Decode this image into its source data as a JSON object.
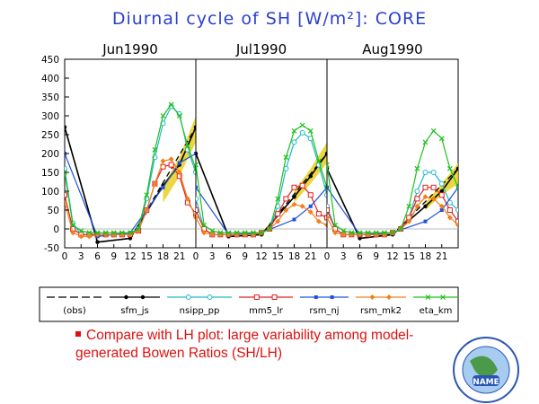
{
  "chart_data": {
    "type": "line",
    "title": "Diurnal cycle of SH [W/m²]: CORE",
    "panels": [
      "Jun1990",
      "Jul1990",
      "Aug1990"
    ],
    "x_ticks": [
      "0",
      "3",
      "6",
      "9",
      "12",
      "15",
      "18",
      "21"
    ],
    "y_ticks": [
      "450",
      "400",
      "350",
      "300",
      "250",
      "200",
      "150",
      "100",
      "50",
      "0",
      "-50"
    ],
    "ylim": [
      -50,
      450
    ],
    "xlim": [
      0,
      24
    ],
    "x": [
      0,
      1.5,
      3,
      4.5,
      6,
      7.5,
      9,
      10.5,
      12,
      13.5,
      15,
      16.5,
      18,
      19.5,
      21,
      22.5,
      24
    ],
    "grid": false,
    "legend": "bottom",
    "series": [
      {
        "name": "(obs)",
        "color": "#000000",
        "style": "dashed",
        "panels": [
          {
            "x": [
              0,
              6,
              12,
              24
            ],
            "y": [
              270,
              -35,
              -25,
              270
            ],
            "band": {
              "x": [
                18,
                21,
                24
              ],
              "lo": [
                70,
                140,
                230
              ],
              "hi": [
                115,
                190,
                300
              ]
            }
          },
          {
            "x": [
              0,
              6,
              12,
              24
            ],
            "y": [
              200,
              -20,
              -15,
              200
            ],
            "band": {
              "x": [
                18,
                21,
                24
              ],
              "lo": [
                70,
                120,
                175
              ],
              "hi": [
                100,
                160,
                230
              ]
            }
          },
          {
            "x": [
              0,
              6,
              12,
              24
            ],
            "y": [
              160,
              -25,
              -15,
              160
            ],
            "band": {
              "x": [
                18,
                21,
                24
              ],
              "lo": [
                50,
                90,
                120
              ],
              "hi": [
                70,
                120,
                175
              ]
            }
          }
        ]
      },
      {
        "name": "sfm_js",
        "color": "#000000",
        "style": "solid-dot",
        "panels": [
          {
            "x": [
              0,
              6,
              12,
              18,
              21,
              24
            ],
            "y": [
              270,
              -35,
              -25,
              115,
              170,
              270
            ]
          },
          {
            "x": [
              0,
              6,
              12,
              18,
              21,
              24
            ],
            "y": [
              200,
              -20,
              -15,
              85,
              140,
              200
            ]
          },
          {
            "x": [
              0,
              6,
              12,
              18,
              21,
              24
            ],
            "y": [
              160,
              -25,
              -15,
              60,
              100,
              160
            ]
          }
        ]
      },
      {
        "name": "nsipp_pp",
        "color": "#20b8c8",
        "style": "open-circle",
        "panels": [
          {
            "y": [
              160,
              15,
              -15,
              -15,
              -15,
              -15,
              -15,
              -15,
              -15,
              0,
              80,
              190,
              280,
              325,
              305,
              210,
              150
            ]
          },
          {
            "y": [
              80,
              0,
              -15,
              -15,
              -15,
              -15,
              -15,
              -15,
              -10,
              0,
              60,
              160,
              230,
              255,
              240,
              170,
              90
            ]
          },
          {
            "y": [
              60,
              0,
              -15,
              -15,
              -15,
              -15,
              -15,
              -15,
              -10,
              0,
              30,
              100,
              150,
              150,
              120,
              70,
              50
            ]
          }
        ]
      },
      {
        "name": "mm5_lr",
        "color": "#e02020",
        "style": "open-square",
        "panels": [
          {
            "y": [
              90,
              0,
              -15,
              -15,
              -15,
              -15,
              -15,
              -15,
              -15,
              -5,
              50,
              120,
              165,
              170,
              140,
              70,
              40
            ]
          },
          {
            "y": [
              50,
              0,
              -15,
              -15,
              -15,
              -15,
              -15,
              -15,
              -10,
              0,
              40,
              80,
              110,
              115,
              90,
              40,
              30
            ]
          },
          {
            "y": [
              50,
              0,
              -15,
              -15,
              -15,
              -15,
              -15,
              -15,
              -10,
              0,
              30,
              80,
              110,
              110,
              90,
              50,
              20
            ]
          }
        ]
      },
      {
        "name": "rsm_nj",
        "color": "#2050e0",
        "style": "filled-square",
        "panels": [
          {
            "x": [
              0,
              6,
              12,
              18,
              21,
              24
            ],
            "y": [
              200,
              -20,
              -10,
              110,
              175,
              200
            ]
          },
          {
            "x": [
              0,
              6,
              12,
              18,
              21,
              24
            ],
            "y": [
              110,
              -15,
              -10,
              25,
              60,
              110
            ]
          },
          {
            "x": [
              0,
              6,
              12,
              18,
              21,
              24
            ],
            "y": [
              110,
              -15,
              -10,
              20,
              50,
              110
            ]
          }
        ]
      },
      {
        "name": "rsm_mk2",
        "color": "#f08020",
        "style": "diamond",
        "panels": [
          {
            "y": [
              70,
              -10,
              -20,
              -20,
              -15,
              -15,
              -15,
              -15,
              -15,
              -5,
              50,
              120,
              180,
              185,
              150,
              80,
              30
            ]
          },
          {
            "y": [
              30,
              -10,
              -15,
              -15,
              -15,
              -15,
              -15,
              -15,
              -10,
              0,
              20,
              50,
              65,
              60,
              45,
              20,
              10
            ]
          },
          {
            "y": [
              30,
              -10,
              -15,
              -15,
              -15,
              -15,
              -15,
              -15,
              -10,
              0,
              20,
              60,
              85,
              80,
              60,
              30,
              10
            ]
          }
        ]
      },
      {
        "name": "eta_km",
        "color": "#20c020",
        "style": "cross",
        "panels": [
          {
            "y": [
              150,
              10,
              -5,
              -10,
              -10,
              -10,
              -10,
              -10,
              -10,
              0,
              90,
              210,
              300,
              330,
              300,
              220,
              160
            ]
          },
          {
            "y": [
              170,
              10,
              -5,
              -10,
              -10,
              -10,
              -10,
              -10,
              -10,
              0,
              80,
              190,
              260,
              275,
              260,
              180,
              110
            ]
          },
          {
            "y": [
              170,
              10,
              -5,
              -10,
              -10,
              -10,
              -10,
              -10,
              -10,
              0,
              60,
              160,
              230,
              260,
              240,
              160,
              110
            ]
          }
        ]
      }
    ]
  },
  "note": {
    "text": "Compare with LH plot: large variability among model-generated Bowen Ratios (SH/LH)"
  }
}
